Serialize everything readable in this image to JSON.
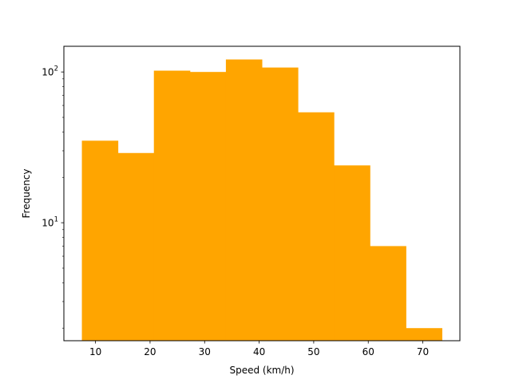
{
  "chart_data": {
    "type": "bar",
    "subtype": "histogram",
    "title": "",
    "xlabel": "Speed (km/h)",
    "ylabel": "Frequency",
    "color": "#ffa500",
    "yscale": "log",
    "bins": [
      {
        "x0": 7.5,
        "x1": 14.1,
        "count": 35
      },
      {
        "x0": 14.1,
        "x1": 20.7,
        "count": 29
      },
      {
        "x0": 20.7,
        "x1": 27.3,
        "count": 102
      },
      {
        "x0": 27.3,
        "x1": 33.9,
        "count": 100
      },
      {
        "x0": 33.9,
        "x1": 40.5,
        "count": 121
      },
      {
        "x0": 40.5,
        "x1": 47.1,
        "count": 107
      },
      {
        "x0": 47.1,
        "x1": 53.7,
        "count": 54
      },
      {
        "x0": 53.7,
        "x1": 60.3,
        "count": 24
      },
      {
        "x0": 60.3,
        "x1": 66.9,
        "count": 7
      },
      {
        "x0": 66.9,
        "x1": 73.5,
        "count": 2
      }
    ],
    "xlim": [
      4.2,
      76.8
    ],
    "ylim": [
      1.65,
      148
    ],
    "xticks": [
      10,
      20,
      30,
      40,
      50,
      60,
      70
    ],
    "xtick_labels": [
      "10",
      "20",
      "30",
      "40",
      "50",
      "60",
      "70"
    ],
    "yticks": [
      10,
      100
    ],
    "ytick_labels": [
      {
        "base": "10",
        "exp": "1"
      },
      {
        "base": "10",
        "exp": "2"
      }
    ],
    "grid": false,
    "legend": null
  }
}
